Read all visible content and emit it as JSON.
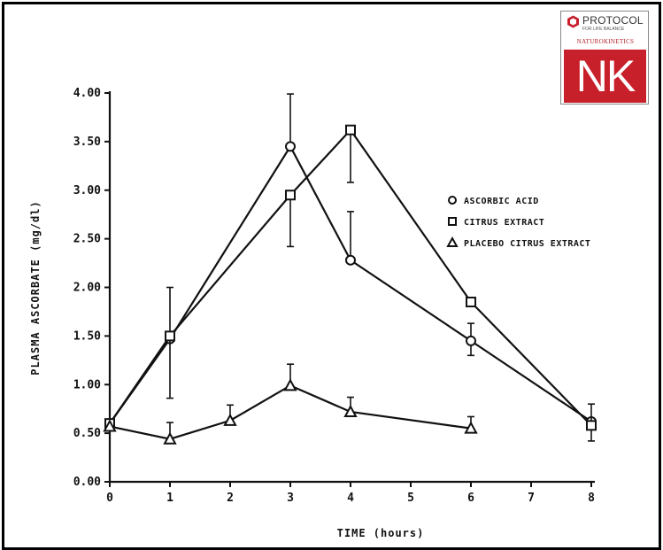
{
  "logo": {
    "brand": "PROTOCOL",
    "tagline": "FOR LIFE BALANCE",
    "subbrand": "NATUROKINETICS",
    "mark": "NK",
    "accent_color": "#c8202b"
  },
  "chart_data": {
    "type": "line",
    "title": "",
    "xlabel": "TIME (hours)",
    "ylabel": "PLASMA ASCORBATE (mg/dl)",
    "xlim": [
      0,
      8
    ],
    "ylim": [
      0,
      4
    ],
    "x_ticks": [
      0,
      1,
      2,
      3,
      4,
      5,
      6,
      7,
      8
    ],
    "x_tick_labels": [
      "0",
      "1",
      "2",
      "3",
      "4",
      "5",
      "6",
      "7",
      "8"
    ],
    "y_ticks": [
      0,
      0.5,
      1,
      1.5,
      2,
      2.5,
      3,
      3.5,
      4
    ],
    "y_tick_labels": [
      "0.00",
      "0.50",
      "1.00",
      "1.50",
      "2.00",
      "2.50",
      "3.00",
      "3.50",
      "4.00"
    ],
    "grid": false,
    "legend_position": "right",
    "series": [
      {
        "name": "ASCORBIC ACID",
        "marker": "circle",
        "x": [
          0,
          1,
          3,
          4,
          6,
          8
        ],
        "y": [
          0.6,
          1.47,
          3.45,
          2.28,
          1.45,
          0.62
        ],
        "err_upper": [
          null,
          null,
          3.99,
          2.78,
          1.63,
          null
        ],
        "err_lower": [
          null,
          null,
          null,
          null,
          1.3,
          null
        ]
      },
      {
        "name": "CITRUS EXTRACT",
        "marker": "square",
        "x": [
          0,
          1,
          3,
          4,
          6,
          8
        ],
        "y": [
          0.6,
          1.5,
          2.95,
          3.62,
          1.85,
          0.58
        ],
        "err_upper": [
          null,
          2.0,
          null,
          null,
          null,
          0.8
        ],
        "err_lower": [
          null,
          0.86,
          2.42,
          3.08,
          null,
          0.42
        ]
      },
      {
        "name": "PLACEBO CITRUS EXTRACT",
        "marker": "triangle",
        "x": [
          0,
          1,
          2,
          3,
          4,
          6
        ],
        "y": [
          0.57,
          0.44,
          0.63,
          0.99,
          0.72,
          0.55
        ],
        "err_upper": [
          null,
          0.61,
          0.79,
          1.21,
          0.87,
          0.67
        ],
        "err_lower": [
          null,
          null,
          null,
          null,
          null,
          null
        ]
      }
    ]
  }
}
